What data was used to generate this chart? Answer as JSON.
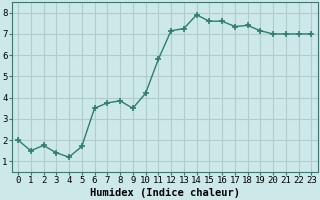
{
  "x": [
    0,
    1,
    2,
    3,
    4,
    5,
    6,
    7,
    8,
    9,
    10,
    11,
    12,
    13,
    14,
    15,
    16,
    17,
    18,
    19,
    20,
    21,
    22,
    23
  ],
  "y": [
    2.0,
    1.5,
    1.75,
    1.4,
    1.2,
    1.7,
    3.5,
    3.75,
    3.85,
    3.5,
    4.2,
    5.8,
    7.15,
    7.25,
    7.9,
    7.6,
    7.6,
    7.35,
    7.4,
    7.15,
    7.0,
    7.0,
    7.0,
    7.0
  ],
  "line_color": "#2e7d6e",
  "marker": "+",
  "marker_size": 4,
  "marker_lw": 1.2,
  "xlabel": "Humidex (Indice chaleur)",
  "xlim": [
    -0.5,
    23.5
  ],
  "ylim": [
    0.5,
    8.5
  ],
  "yticks": [
    1,
    2,
    3,
    4,
    5,
    6,
    7,
    8
  ],
  "xticks": [
    0,
    1,
    2,
    3,
    4,
    5,
    6,
    7,
    8,
    9,
    10,
    11,
    12,
    13,
    14,
    15,
    16,
    17,
    18,
    19,
    20,
    21,
    22,
    23
  ],
  "bg_color": "#cde8e8",
  "grid_color": "#b0cccc",
  "xlabel_fontsize": 7.5,
  "tick_fontsize": 6.5,
  "line_width": 1.0
}
